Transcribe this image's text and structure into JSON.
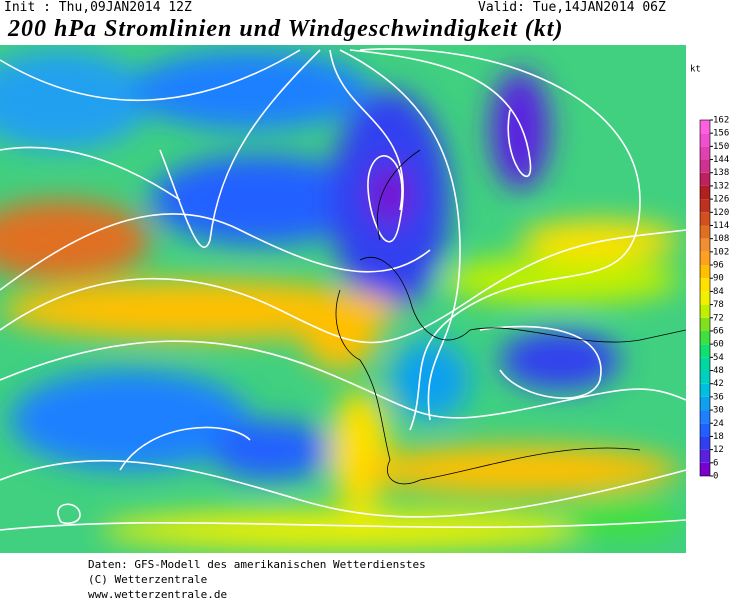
{
  "header": {
    "init": "Init : Thu,09JAN2014 12Z",
    "valid": "Valid: Tue,14JAN2014 06Z",
    "title": "200 hPa Stromlinien und Windgeschwindigkeit (kt)"
  },
  "colorbar": {
    "unit": "kt",
    "ticks": [
      0,
      6,
      12,
      18,
      24,
      30,
      36,
      42,
      48,
      54,
      60,
      66,
      72,
      78,
      84,
      90,
      96,
      102,
      108,
      114,
      120,
      126,
      132,
      138,
      144,
      150,
      156,
      162
    ],
    "colors": [
      "#7a00d0",
      "#5a20e0",
      "#3040f0",
      "#2060ff",
      "#1c80ff",
      "#10a0f0",
      "#00c0e0",
      "#00d0c0",
      "#00d8a0",
      "#10e070",
      "#40e040",
      "#80e020",
      "#c0f000",
      "#f0f000",
      "#ffe000",
      "#ffc000",
      "#ffa020",
      "#f09030",
      "#e07020",
      "#d05020",
      "#c03020",
      "#b02020",
      "#c02060",
      "#d03090",
      "#e040b0",
      "#f050d0",
      "#ff60e0"
    ]
  },
  "footer": [
    "Daten: GFS-Modell des amerikanischen Wetterdienstes",
    "(C) Wetterzentrale",
    "www.wetterzentrale.de"
  ]
}
